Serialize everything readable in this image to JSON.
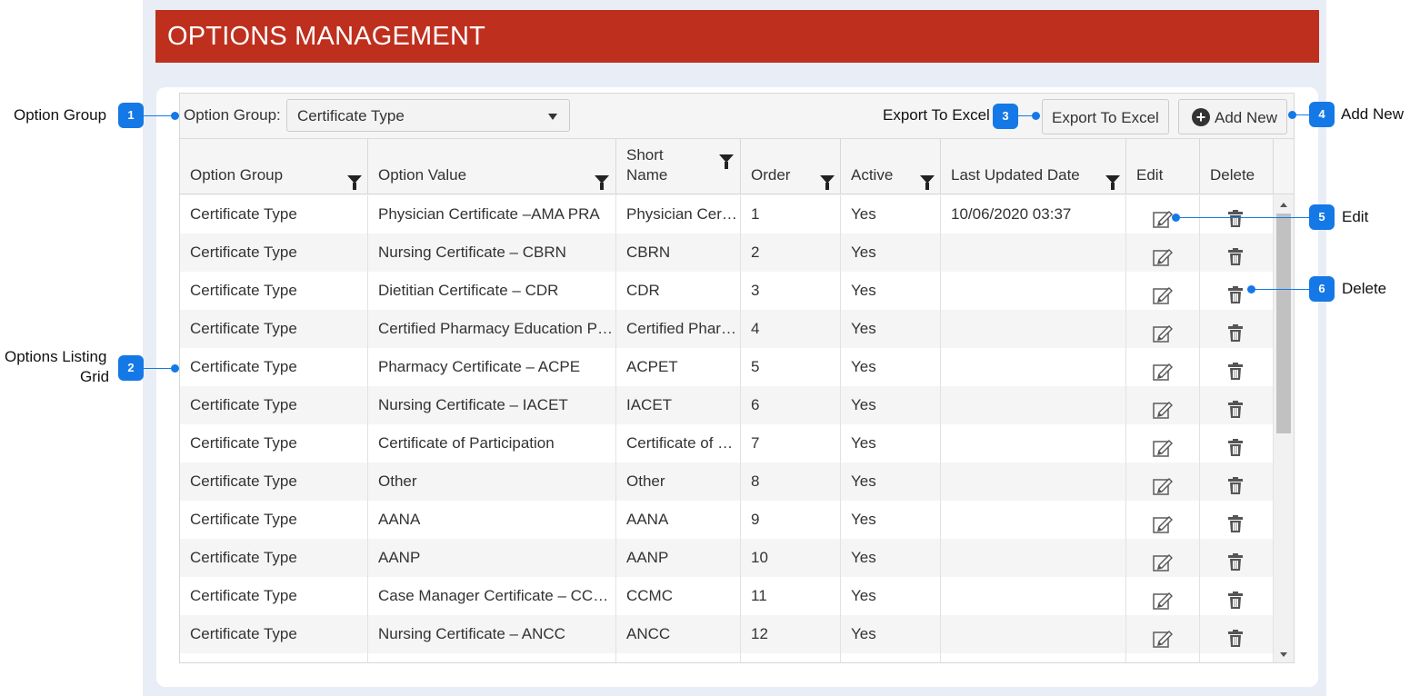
{
  "header": {
    "title": "OPTIONS MANAGEMENT"
  },
  "toolbar": {
    "option_group_label": "Option Group:",
    "option_group_value": "Certificate Type",
    "export_label": "Export To Excel",
    "add_new_label": "Add New"
  },
  "columns": [
    "Option Group",
    "Option Value",
    "Short Name",
    "Order",
    "Active",
    "Last Updated Date",
    "Edit",
    "Delete"
  ],
  "rows": [
    {
      "group": "Certificate Type",
      "value": "Physician Certificate –AMA PRA",
      "short": "Physician Certificate",
      "order": "1",
      "active": "Yes",
      "updated": "10/06/2020 03:37"
    },
    {
      "group": "Certificate Type",
      "value": "Nursing Certificate – CBRN",
      "short": "CBRN",
      "order": "2",
      "active": "Yes",
      "updated": ""
    },
    {
      "group": "Certificate Type",
      "value": "Dietitian Certificate – CDR",
      "short": "CDR",
      "order": "3",
      "active": "Yes",
      "updated": ""
    },
    {
      "group": "Certificate Type",
      "value": "Certified Pharmacy Education Program",
      "short": "Certified Pharmacy",
      "order": "4",
      "active": "Yes",
      "updated": ""
    },
    {
      "group": "Certificate Type",
      "value": "Pharmacy Certificate – ACPE",
      "short": "ACPET",
      "order": "5",
      "active": "Yes",
      "updated": ""
    },
    {
      "group": "Certificate Type",
      "value": "Nursing Certificate – IACET",
      "short": "IACET",
      "order": "6",
      "active": "Yes",
      "updated": ""
    },
    {
      "group": "Certificate Type",
      "value": "Certificate of Participation",
      "short": "Certificate of Participation",
      "order": "7",
      "active": "Yes",
      "updated": ""
    },
    {
      "group": "Certificate Type",
      "value": "Other",
      "short": "Other",
      "order": "8",
      "active": "Yes",
      "updated": ""
    },
    {
      "group": "Certificate Type",
      "value": "AANA",
      "short": "AANA",
      "order": "9",
      "active": "Yes",
      "updated": ""
    },
    {
      "group": "Certificate Type",
      "value": "AANP",
      "short": "AANP",
      "order": "10",
      "active": "Yes",
      "updated": ""
    },
    {
      "group": "Certificate Type",
      "value": "Case Manager Certificate – CCMC",
      "short": "CCMC",
      "order": "11",
      "active": "Yes",
      "updated": ""
    },
    {
      "group": "Certificate Type",
      "value": "Nursing Certificate – ANCC",
      "short": "ANCC",
      "order": "12",
      "active": "Yes",
      "updated": ""
    },
    {
      "group": "",
      "value": "",
      "short": "",
      "order": "",
      "active": "",
      "updated": ""
    }
  ],
  "callouts": {
    "c1": {
      "num": "1",
      "label": "Option Group"
    },
    "c2": {
      "num": "2",
      "label1": "Options Listing",
      "label2": "Grid"
    },
    "c3": {
      "num": "3",
      "label": "Export To Excel"
    },
    "c4": {
      "num": "4",
      "label": "Add New"
    },
    "c5": {
      "num": "5",
      "label": "Edit"
    },
    "c6": {
      "num": "6",
      "label": "Delete"
    }
  },
  "icons": {
    "dropdown": "chevron-down-icon",
    "add": "plus-circle-icon",
    "filter": "filter-icon",
    "edit": "pencil-square-icon",
    "delete": "trash-icon"
  },
  "colors": {
    "title_bar": "#bf2f1e",
    "callout": "#1479e6",
    "app_background": "#e9eef6"
  }
}
